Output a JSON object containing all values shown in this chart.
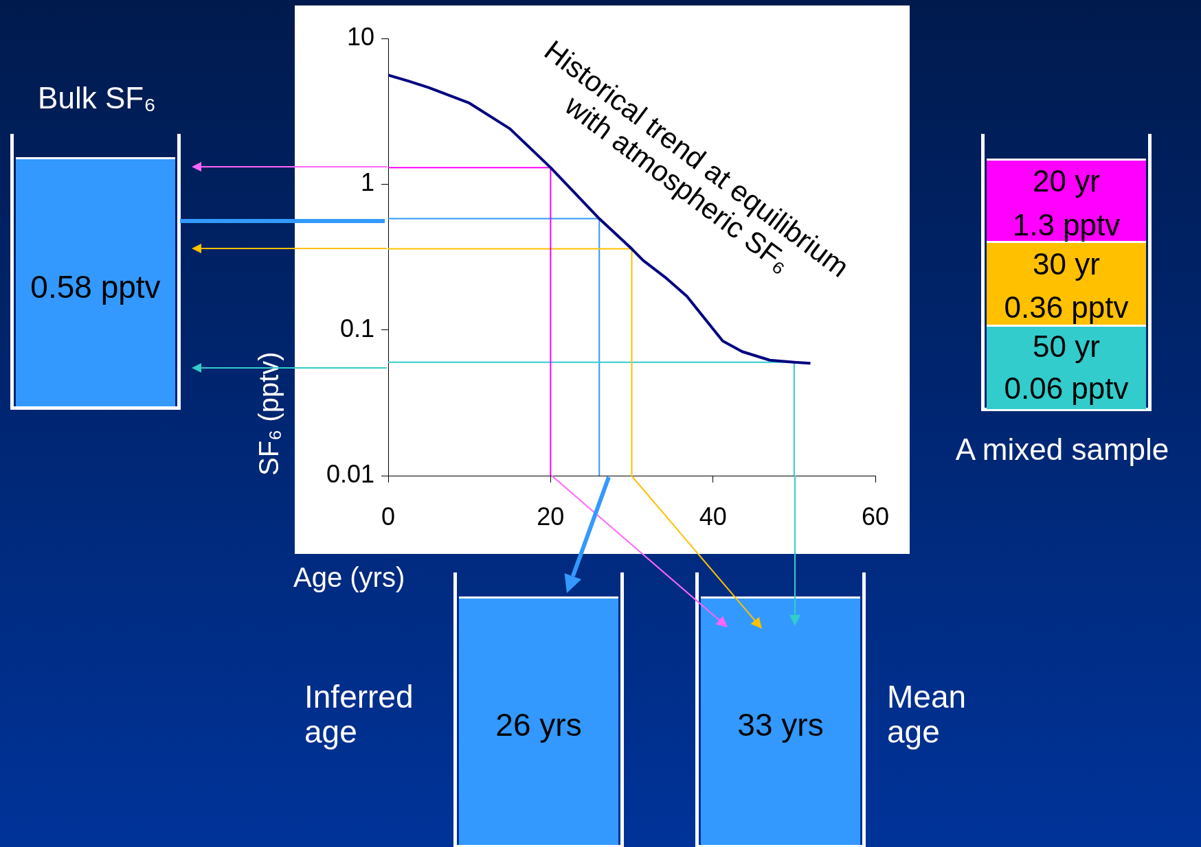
{
  "chart_data": {
    "type": "line",
    "xlabel": "Age (yrs)",
    "ylabel": "SF₆ (pptv)",
    "log": "y",
    "grid": false,
    "legend": false,
    "marker": "none",
    "line_style": "solid",
    "xlim": [
      0,
      60
    ],
    "xticks": [
      0,
      20,
      40,
      60
    ],
    "ylim": [
      0.01,
      10
    ],
    "yticks": [
      0.01,
      0.1,
      1,
      10
    ],
    "series": [
      {
        "color": "#000080",
        "x": [
          0,
          2.5,
          5,
          10,
          15,
          20,
          26,
          30,
          31.4,
          34.1,
          36.8,
          41.2,
          43.6,
          47,
          50,
          52
        ],
        "values": [
          5.6,
          5.1,
          4.6,
          3.6,
          2.4,
          1.3,
          0.58,
          0.36,
          0.3,
          0.23,
          0.17,
          0.084,
          0.071,
          0.062,
          0.06,
          0.059
        ]
      },
      {
        "color": "#ff00ff",
        "x": [
          0,
          20,
          20
        ],
        "values": [
          1.3,
          1.3,
          0.01
        ]
      },
      {
        "color": "#ffc000",
        "x": [
          0,
          30,
          30
        ],
        "values": [
          0.36,
          0.36,
          0.01
        ]
      },
      {
        "color": "#33cccc",
        "x": [
          0,
          50,
          50
        ],
        "values": [
          0.06,
          0.06,
          0.01
        ]
      },
      {
        "color": "#3399ff",
        "x": [
          0,
          26,
          26
        ],
        "values": [
          0.58,
          0.58,
          0.01
        ]
      }
    ],
    "annotations": [
      "Historical trend at equilibrium with atmospheric SF₆",
      "Bulk SF₆",
      "0.58 pptv",
      "20 yr",
      "1.3 pptv",
      "30 yr",
      "0.36 pptv",
      "50 yr",
      "0.06 pptv",
      "A mixed sample",
      "Inferred age",
      "26 yrs",
      "Mean age",
      "33 yrs"
    ]
  }
}
